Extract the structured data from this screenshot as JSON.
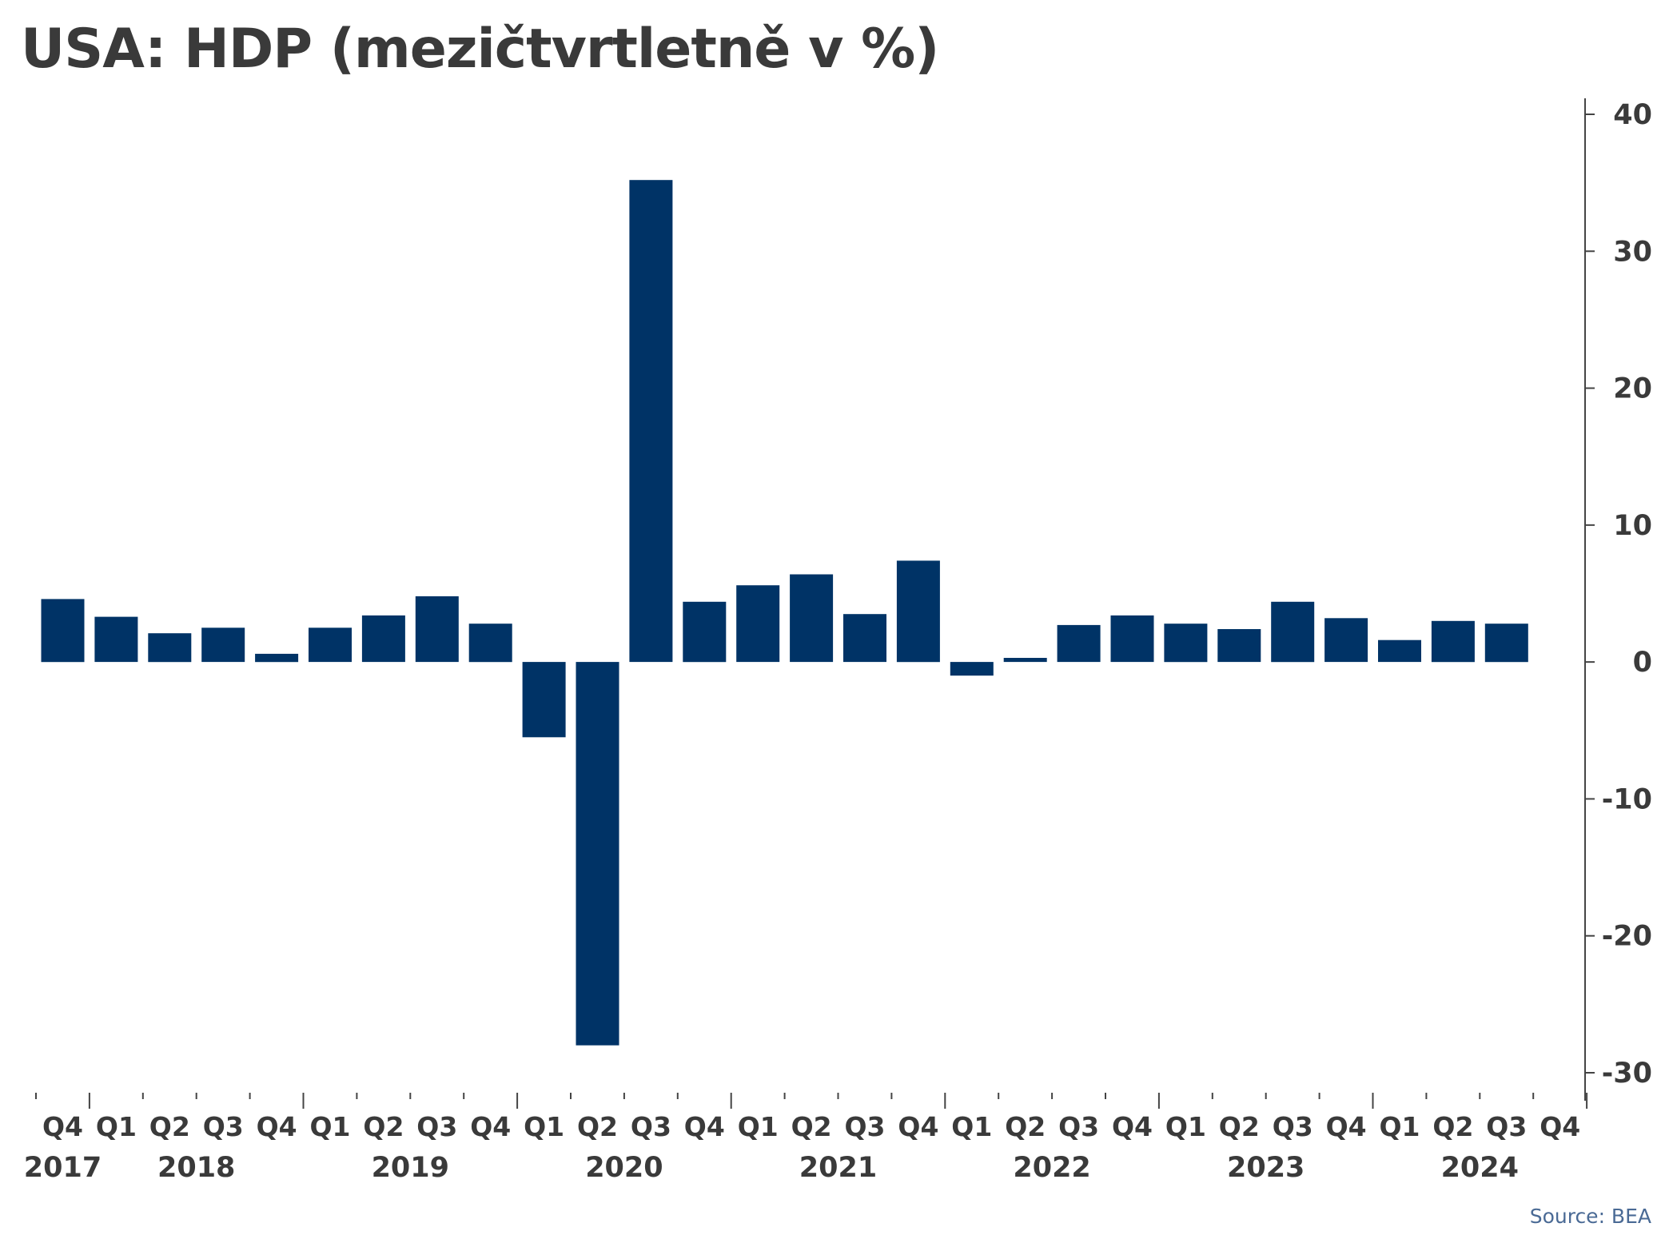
{
  "chart_data": {
    "type": "bar",
    "title": "USA: HDP (mezičtvrtletně v %)",
    "source": "Source: BEA",
    "xlabel": "",
    "ylabel": "",
    "ylim": [
      -30,
      40
    ],
    "yticks": [
      40,
      30,
      20,
      10,
      0,
      -10,
      -20,
      -30
    ],
    "ytick_labels": [
      "40",
      "30",
      "20",
      "10",
      "0",
      "-10",
      "-20",
      "-30"
    ],
    "y_axis_position": "right",
    "grid": false,
    "legend": "none",
    "bar_color": "#003366",
    "categories": [
      "Q4",
      "Q1",
      "Q2",
      "Q3",
      "Q4",
      "Q1",
      "Q2",
      "Q3",
      "Q4",
      "Q1",
      "Q2",
      "Q3",
      "Q4",
      "Q1",
      "Q2",
      "Q3",
      "Q4",
      "Q1",
      "Q2",
      "Q3",
      "Q4",
      "Q1",
      "Q2",
      "Q3",
      "Q4",
      "Q1",
      "Q2",
      "Q3",
      "Q4"
    ],
    "values": [
      4.6,
      3.3,
      2.1,
      2.5,
      0.6,
      2.5,
      3.4,
      4.8,
      2.8,
      -5.5,
      -28.0,
      35.2,
      4.4,
      5.6,
      6.4,
      3.5,
      7.4,
      -1.0,
      0.3,
      2.7,
      3.4,
      2.8,
      2.4,
      4.4,
      3.2,
      1.6,
      3.0,
      2.8,
      null
    ],
    "year_labels": [
      {
        "label": "2017",
        "position": 0
      },
      {
        "label": "2018",
        "position": 2.5
      },
      {
        "label": "2019",
        "position": 6.5
      },
      {
        "label": "2020",
        "position": 10.5
      },
      {
        "label": "2021",
        "position": 14.5
      },
      {
        "label": "2022",
        "position": 18.5
      },
      {
        "label": "2023",
        "position": 22.5
      },
      {
        "label": "2024",
        "position": 26.5
      }
    ]
  }
}
